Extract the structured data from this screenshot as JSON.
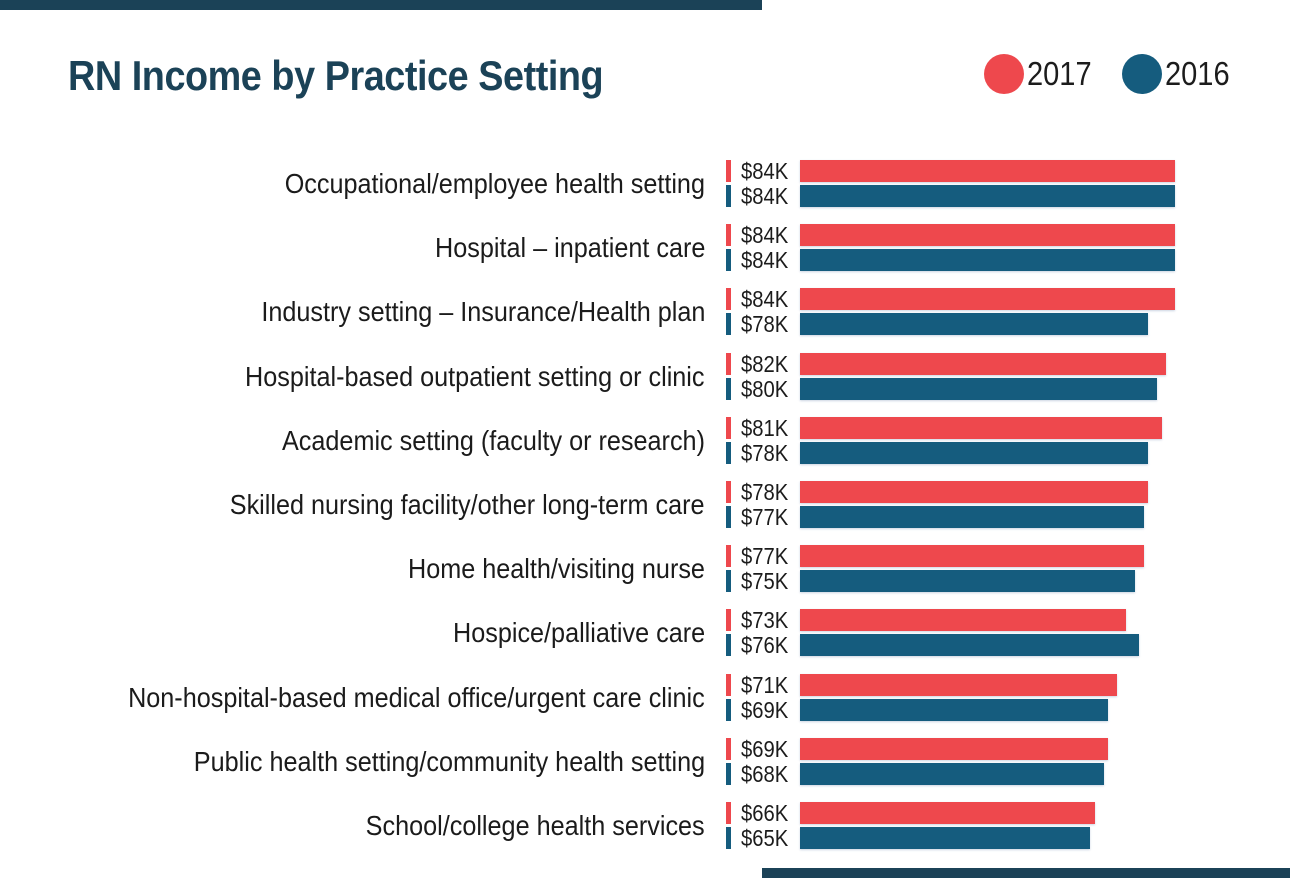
{
  "header": {
    "title": "RN Income by Practice Setting"
  },
  "legend": {
    "items": [
      {
        "label": "2017",
        "color": "#ee484d"
      },
      {
        "label": "2016",
        "color": "#155c7e"
      }
    ]
  },
  "chart_data": {
    "type": "bar",
    "orientation": "horizontal",
    "title": "RN Income by Practice Setting",
    "unit": "USD thousands per year",
    "xlim": [
      0,
      84
    ],
    "grid": false,
    "legend_position": "top-right",
    "categories": [
      "Occupational/employee health setting",
      "Hospital – inpatient care",
      "Industry setting – Insurance/Health plan",
      "Hospital-based outpatient setting or clinic",
      "Academic setting (faculty or research)",
      "Skilled nursing facility/other long-term care",
      "Home health/visiting nurse",
      "Hospice/palliative care",
      "Non-hospital-based medical office/urgent care clinic",
      "Public health setting/community health setting",
      "School/college health services"
    ],
    "series": [
      {
        "name": "2017",
        "color": "#ee484d",
        "values_k": [
          84,
          84,
          84,
          82,
          81,
          78,
          77,
          73,
          71,
          69,
          66
        ],
        "labels": [
          "$84K",
          "$84K",
          "$84K",
          "$82K",
          "$81K",
          "$78K",
          "$77K",
          "$73K",
          "$71K",
          "$69K",
          "$66K"
        ]
      },
      {
        "name": "2016",
        "color": "#155c7e",
        "values_k": [
          84,
          84,
          78,
          80,
          78,
          77,
          75,
          76,
          69,
          68,
          65
        ],
        "labels": [
          "$84K",
          "$84K",
          "$78K",
          "$80K",
          "$78K",
          "$77K",
          "$75K",
          "$76K",
          "$69K",
          "$68K",
          "$65K"
        ]
      }
    ]
  },
  "colors": {
    "accent_dark": "#1b4257",
    "red": "#ee484d",
    "blue": "#155c7e",
    "text": "#1b1b1b",
    "background": "#ffffff"
  }
}
